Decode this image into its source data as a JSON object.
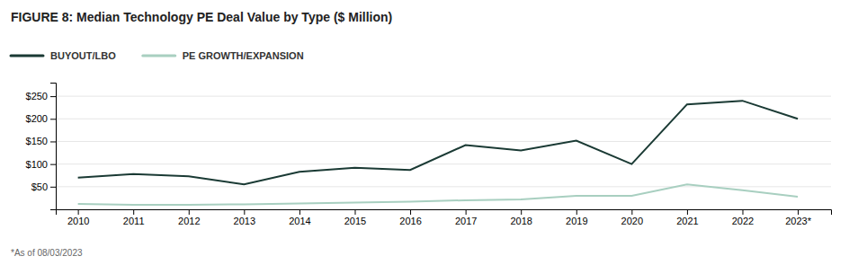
{
  "chart_data": {
    "type": "line",
    "title": "FIGURE 8:  Median Technology PE Deal Value by Type ($ Million)",
    "annotations": [
      "*As of 08/03/2023"
    ],
    "x": [
      2010,
      2011,
      2012,
      2013,
      2014,
      2015,
      2016,
      2017,
      2018,
      2019,
      2020,
      2021,
      2022,
      2023
    ],
    "xlim": [
      2009.6,
      2023.6
    ],
    "xticks": [
      2010,
      2011,
      2012,
      2013,
      2014,
      2015,
      2016,
      2017,
      2018,
      2019,
      2020,
      2021,
      2022,
      {
        "value": 2023,
        "label": "2023*"
      }
    ],
    "series": [
      {
        "name": "BUYOUT/LBO",
        "color": "#1a3a34",
        "values": [
          70,
          78,
          73,
          55,
          83,
          92,
          87,
          142,
          130,
          152,
          100,
          232,
          240,
          200
        ]
      },
      {
        "name": "PE GROWTH/EXPANSION",
        "color": "#a8cfc0",
        "values": [
          12,
          10,
          10,
          11,
          13,
          15,
          17,
          20,
          22,
          30,
          30,
          55,
          42,
          28
        ]
      }
    ],
    "ylim": [
      0,
      280
    ],
    "yticks": [
      {
        "value": 50,
        "label": "$50"
      },
      {
        "value": 100,
        "label": "$100"
      },
      {
        "value": 150,
        "label": "$150"
      },
      {
        "value": 200,
        "label": "$200"
      },
      {
        "value": 250,
        "label": "$250"
      }
    ],
    "grid": true,
    "legend": "top"
  }
}
